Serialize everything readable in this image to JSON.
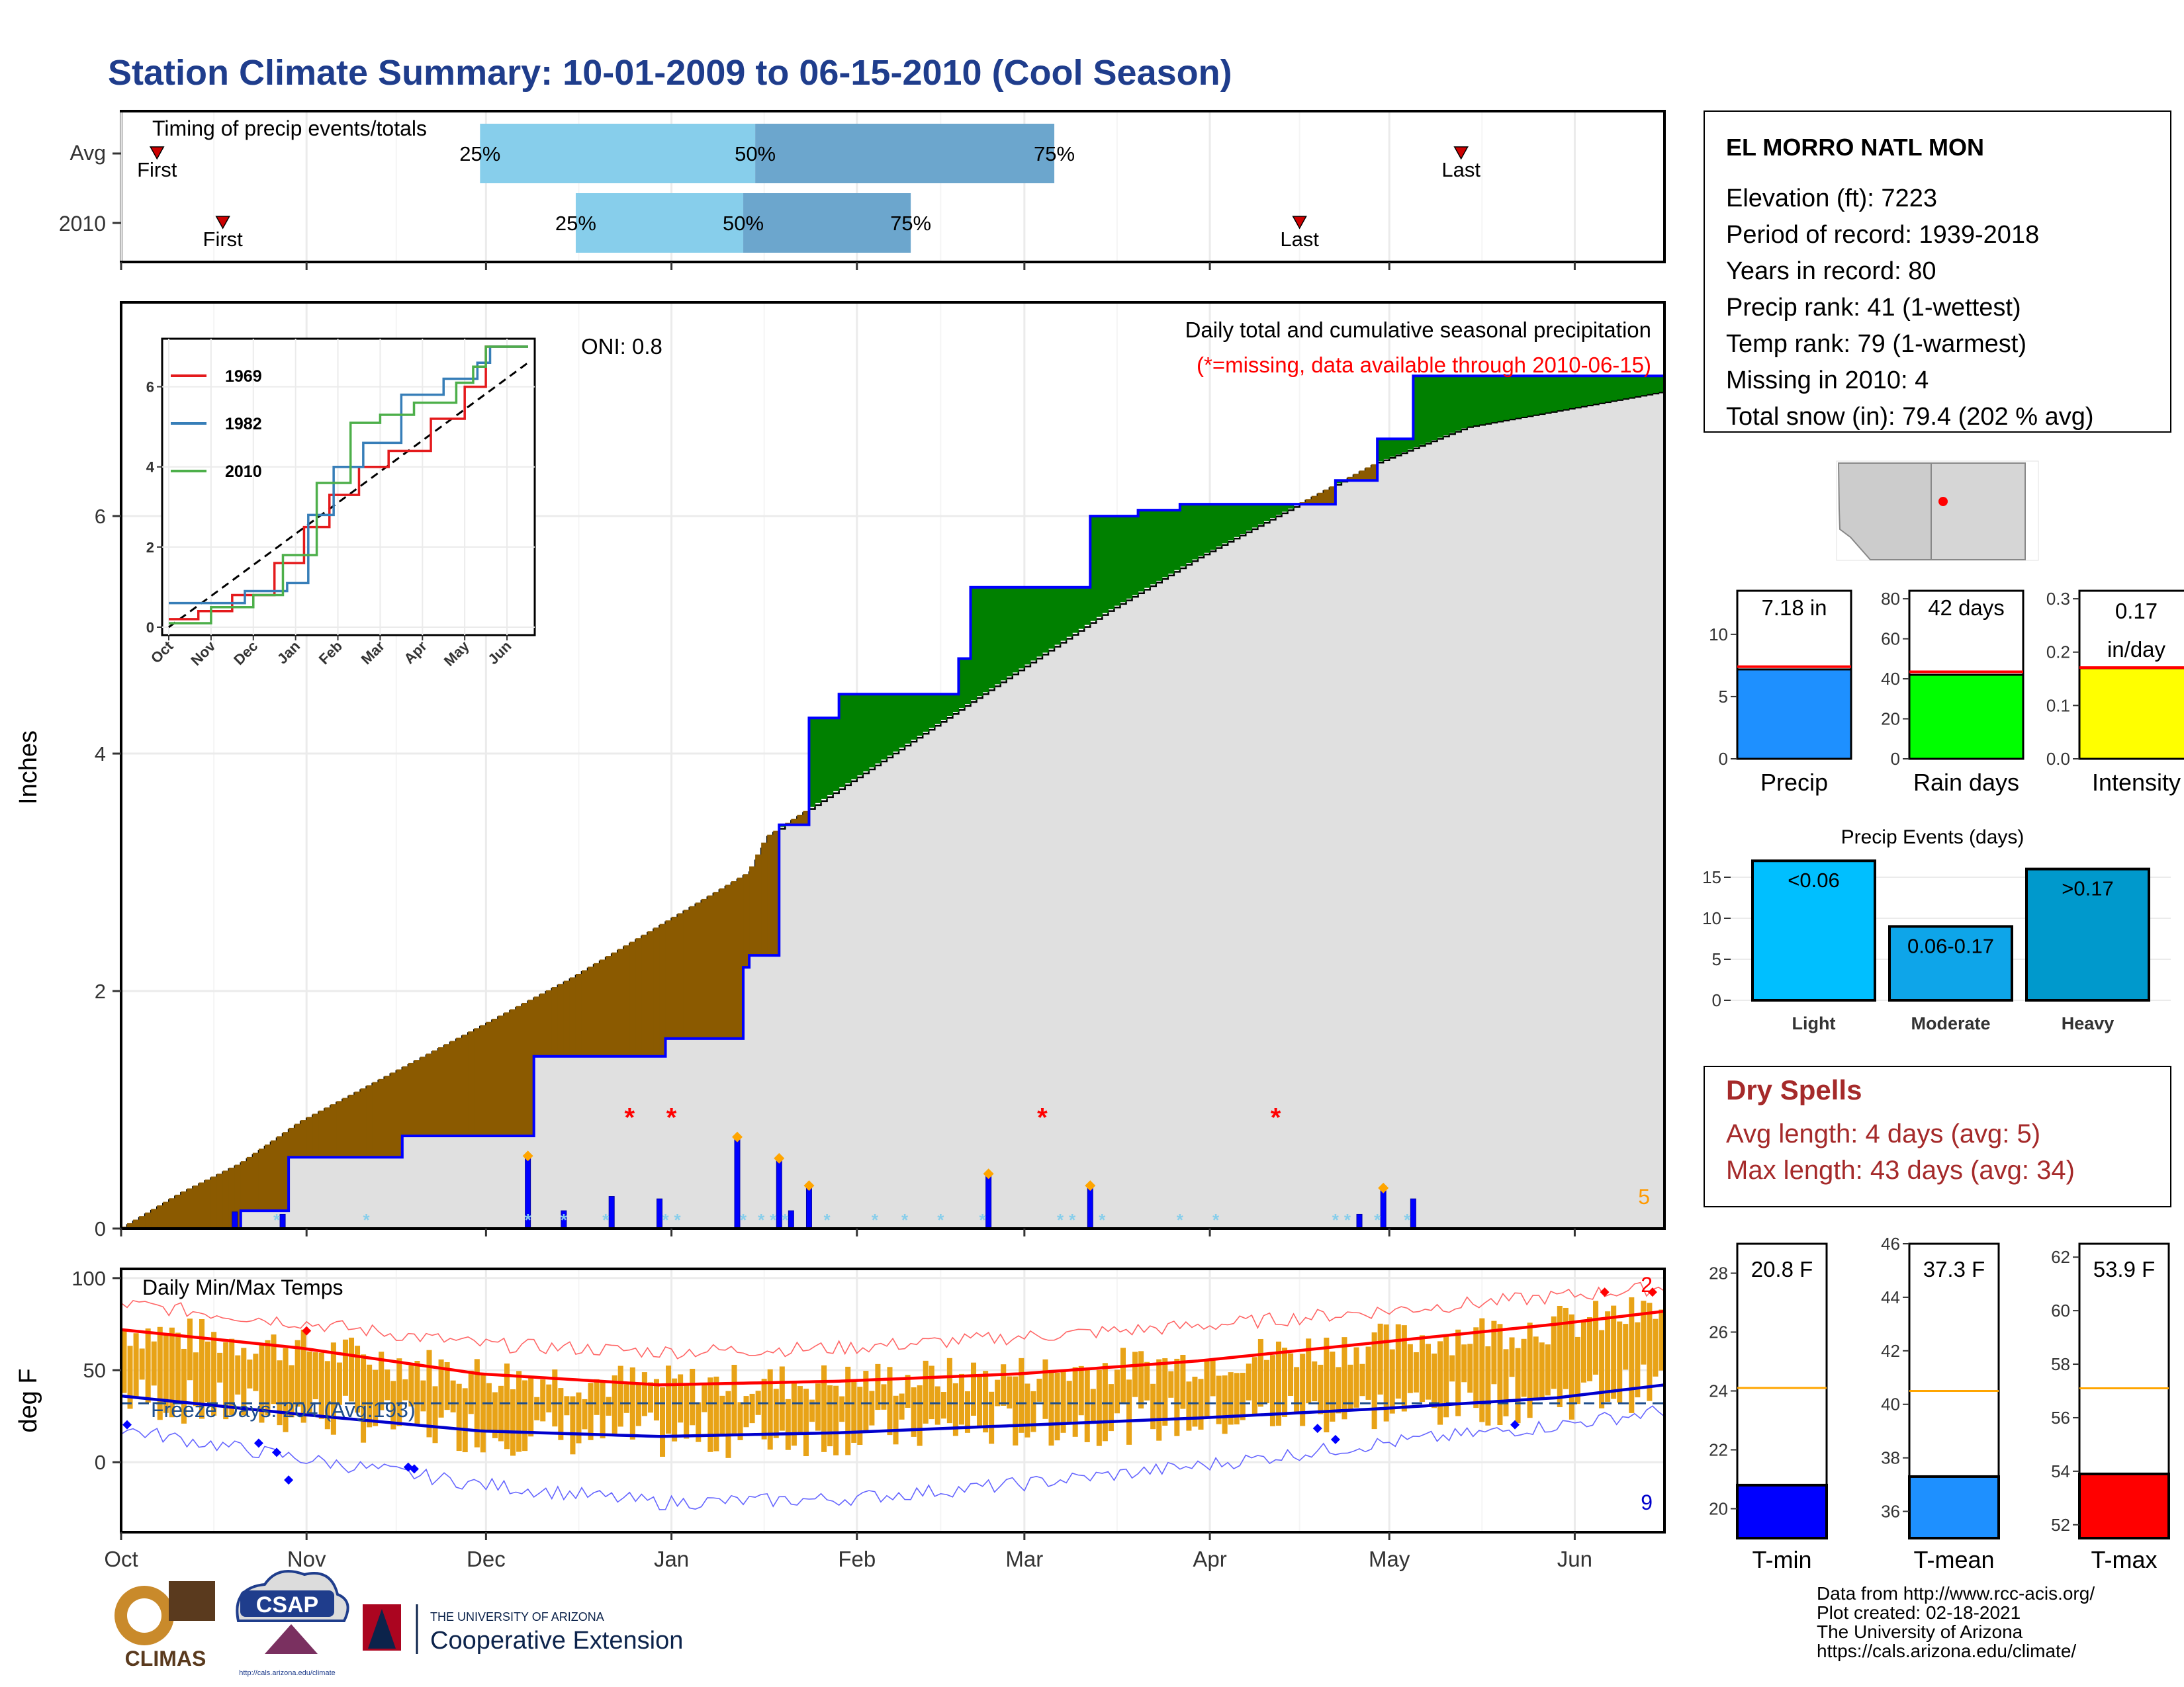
{
  "title": "Station Climate Summary: 10-01-2009 to 06-15-2010 (Cool Season)",
  "colors": {
    "title": "#1f3d8c",
    "precip_gray": "#e0e0e0",
    "deficit": "#8b5a00",
    "surplus": "#008000",
    "precip_line": "#0000ff",
    "temp_bar": "#e8a317",
    "missing": "#ff0000",
    "snow": "#87ceeb",
    "dry_spell_text": "#a52a2a"
  },
  "timing_panel": {
    "title": "Timing of precip events/totals",
    "rows": [
      {
        "label": "Avg",
        "first_label": "First",
        "last_label": "Last",
        "first_day": 6,
        "last_day": 224,
        "p25_label": "25%",
        "p50_label": "50%",
        "p75_label": "75%",
        "p25_day": 60,
        "p50_day": 106,
        "p75_day": 156
      },
      {
        "label": "2010",
        "first_label": "First",
        "last_label": "Last",
        "first_day": 17,
        "last_day": 197,
        "p25_label": "25%",
        "p50_label": "50%",
        "p75_label": "75%",
        "p25_day": 76,
        "p50_day": 104,
        "p75_day": 132
      }
    ]
  },
  "precip_panel": {
    "ylabel": "Inches",
    "y_ticks": [
      "0",
      "2",
      "4",
      "6"
    ],
    "annotation": "Daily total and cumulative seasonal precipitation",
    "missing_note": "(*=missing, data available through 2010-06-15)",
    "oni": "ONI: 0.8",
    "snow_days_count": "5",
    "inset": {
      "y_ticks": [
        "0",
        "2",
        "4",
        "6"
      ],
      "x_ticks": [
        "Oct",
        "Nov",
        "Dec",
        "Jan",
        "Feb",
        "Mar",
        "Apr",
        "May",
        "Jun"
      ],
      "legend": [
        {
          "name": "1969",
          "color": "#e41a1c"
        },
        {
          "name": "1982",
          "color": "#377eb8"
        },
        {
          "name": "2010",
          "color": "#4daf4a"
        }
      ]
    }
  },
  "temp_panel": {
    "ylabel": "deg F",
    "title": "Daily Min/Max Temps",
    "y_ticks": [
      "0",
      "50",
      "100"
    ],
    "freeze_label": "Freeze Days: 204 (Avg:193)",
    "record_high_count": "2",
    "record_low_count": "9"
  },
  "x_axis_months": [
    "Oct",
    "Nov",
    "Dec",
    "Jan",
    "Feb",
    "Mar",
    "Apr",
    "May",
    "Jun"
  ],
  "station": {
    "name": "EL MORRO NATL MON",
    "lines": [
      "Elevation (ft): 7223",
      "Period of record: 1939-2018",
      "Years in record: 80",
      "Precip rank: 41 (1-wettest)",
      "Temp rank: 79 (1-warmest)",
      "Missing in 2010: 4",
      "Total snow (in): 79.4 (202 % avg)"
    ]
  },
  "summary_bars": [
    {
      "label": "Precip",
      "value_label": "7.18 in",
      "value": 7.18,
      "avg": 7.4,
      "ymax": 13.5,
      "ticks": [
        "0",
        "5",
        "10"
      ],
      "color": "#1e90ff",
      "line": "#ff0000"
    },
    {
      "label": "Rain days",
      "value_label": "42 days",
      "value": 42,
      "avg": 43.5,
      "ymax": 84,
      "ticks": [
        "0",
        "20",
        "40",
        "60",
        "80"
      ],
      "color": "#00ff00",
      "line": "#ff0000"
    },
    {
      "label": "Intensity",
      "value_label": "0.17",
      "value_label2": "in/day",
      "value": 0.17,
      "avg": 0.171,
      "ymax": 0.315,
      "ticks": [
        "0.0",
        "0.1",
        "0.2",
        "0.3"
      ],
      "color": "#ffff00",
      "line": "#ff0000"
    }
  ],
  "precip_events": {
    "title": "Precip Events (days)",
    "y_ticks": [
      "0",
      "5",
      "10",
      "15"
    ],
    "bars": [
      {
        "category": "Light",
        "label": "<0.06",
        "value": 17,
        "color": "#00bfff"
      },
      {
        "category": "Moderate",
        "label": "0.06-0.17",
        "value": 9,
        "color": "#0ea5e9"
      },
      {
        "category": "Heavy",
        "label": ">0.17",
        "value": 16,
        "color": "#0099cc"
      }
    ]
  },
  "dry_spells": {
    "title": "Dry Spells",
    "avg": "Avg length: 4 days (avg: 5)",
    "max": "Max length: 43 days (avg: 34)"
  },
  "temp_bars": [
    {
      "label": "T-min",
      "value_label": "20.8 F",
      "value": 20.8,
      "avg": 24.1,
      "ymin": 19,
      "ymax": 29,
      "ticks": [
        "20",
        "22",
        "24",
        "26",
        "28"
      ],
      "color": "#0000ff"
    },
    {
      "label": "T-mean",
      "value_label": "37.3 F",
      "value": 37.3,
      "avg": 40.5,
      "ymin": 35,
      "ymax": 46,
      "ticks": [
        "36",
        "38",
        "40",
        "42",
        "44",
        "46"
      ],
      "color": "#1e90ff"
    },
    {
      "label": "T-max",
      "value_label": "53.9 F",
      "value": 53.9,
      "avg": 57.1,
      "ymin": 51.5,
      "ymax": 62.5,
      "ticks": [
        "52",
        "54",
        "56",
        "58",
        "60",
        "62"
      ],
      "color": "#ff0000"
    }
  ],
  "footer": {
    "credits": [
      "Data from http://www.rcc-acis.org/",
      "Plot created: 02-18-2021",
      "The University of Arizona",
      "https://cals.arizona.edu/climate/"
    ],
    "logos": {
      "climas": "CLIMAS",
      "csap": "CSAP",
      "csap_url": "http://cals.arizona.edu/climate",
      "ua_small": "THE UNIVERSITY OF ARIZONA",
      "ua_big": "Cooperative Extension"
    }
  },
  "chart_data": [
    {
      "type": "area",
      "title": "Daily total and cumulative seasonal precipitation",
      "ylabel": "Inches",
      "ylim": [
        0,
        7.8
      ],
      "x_range": [
        "2009-10-01",
        "2010-06-15"
      ],
      "series": [
        {
          "name": "cumulative average (gray)",
          "x_days": [
            0,
            10,
            20,
            30,
            45,
            60,
            75,
            90,
            105,
            108,
            120,
            135,
            150,
            165,
            180,
            195,
            210,
            225,
            258
          ],
          "values": [
            0,
            0.3,
            0.55,
            0.9,
            1.3,
            1.7,
            2.1,
            2.55,
            3.0,
            3.3,
            3.7,
            4.2,
            4.7,
            5.2,
            5.65,
            6.05,
            6.45,
            6.75,
            7.05
          ]
        },
        {
          "name": "cumulative 2010 (blue)",
          "x_days": [
            0,
            19,
            20,
            27,
            28,
            45,
            46,
            47,
            68,
            69,
            90,
            91,
            103,
            104,
            105,
            108,
            110,
            115,
            120,
            140,
            142,
            160,
            162,
            170,
            177,
            202,
            203,
            209,
            210,
            213,
            216,
            258
          ],
          "values": [
            0,
            0,
            0.15,
            0.15,
            0.6,
            0.6,
            0.6,
            0.78,
            0.78,
            1.45,
            1.45,
            1.6,
            1.6,
            2.2,
            2.3,
            2.3,
            3.4,
            4.3,
            4.5,
            4.8,
            5.4,
            5.4,
            6.0,
            6.05,
            6.1,
            6.1,
            6.3,
            6.3,
            6.65,
            6.65,
            7.18,
            7.18
          ]
        },
        {
          "name": "daily precip",
          "x_days": [
            19,
            27,
            68,
            74,
            82,
            90,
            103,
            110,
            112,
            115,
            145,
            162,
            207,
            211,
            216
          ],
          "values": [
            0.14,
            0.12,
            0.6,
            0.15,
            0.27,
            0.25,
            0.76,
            0.58,
            0.15,
            0.35,
            0.45,
            0.35,
            0.12,
            0.33,
            0.25
          ]
        }
      ],
      "missing_days": [
        85,
        92,
        154,
        193
      ]
    },
    {
      "type": "line",
      "title": "Daily Min/Max Temps",
      "ylabel": "deg F",
      "ylim": [
        -38,
        105
      ],
      "x_range": [
        "2009-10-01",
        "2010-06-15"
      ],
      "series": [
        {
          "name": "avg max",
          "x_days": [
            0,
            30,
            60,
            90,
            120,
            150,
            180,
            210,
            240,
            258
          ],
          "values": [
            72,
            62,
            48,
            42,
            44,
            48,
            55,
            65,
            75,
            82
          ]
        },
        {
          "name": "avg min",
          "x_days": [
            0,
            30,
            60,
            90,
            120,
            150,
            180,
            210,
            240,
            258
          ],
          "values": [
            36,
            26,
            17,
            14,
            16,
            20,
            24,
            29,
            35,
            42
          ]
        },
        {
          "name": "record max",
          "x_days": [
            0,
            30,
            60,
            90,
            120,
            150,
            180,
            210,
            240,
            258
          ],
          "values": [
            86,
            76,
            64,
            60,
            62,
            68,
            74,
            82,
            90,
            95
          ]
        },
        {
          "name": "record min",
          "x_days": [
            0,
            30,
            60,
            90,
            120,
            150,
            180,
            210,
            240,
            258
          ],
          "values": [
            18,
            2,
            -12,
            -22,
            -20,
            -12,
            -2,
            10,
            20,
            28
          ]
        }
      ],
      "freeze_line": 32
    }
  ]
}
